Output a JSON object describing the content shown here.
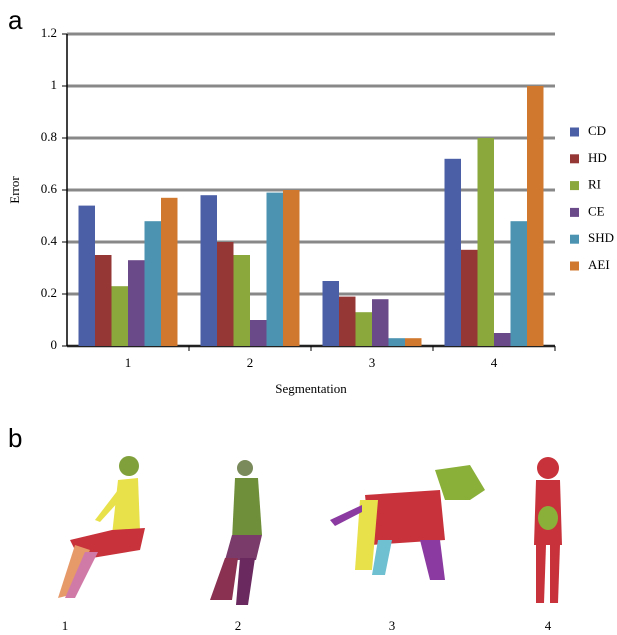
{
  "chart_data": {
    "type": "bar",
    "panel_label": "a",
    "x_label": "Segmentation",
    "y_label": "Error",
    "categories": [
      "1",
      "2",
      "3",
      "4"
    ],
    "series": [
      {
        "name": "CD",
        "color": "#4a5fa5",
        "values": [
          0.54,
          0.58,
          0.25,
          0.72
        ]
      },
      {
        "name": "HD",
        "color": "#953735",
        "values": [
          0.35,
          0.4,
          0.19,
          0.37
        ]
      },
      {
        "name": "RI",
        "color": "#8aa83c",
        "values": [
          0.23,
          0.35,
          0.13,
          0.8
        ]
      },
      {
        "name": "CE",
        "color": "#6b4a8a",
        "values": [
          0.33,
          0.1,
          0.18,
          0.05
        ]
      },
      {
        "name": "SHD",
        "color": "#4b93b0",
        "values": [
          0.48,
          0.59,
          0.03,
          0.48
        ]
      },
      {
        "name": "AEI",
        "color": "#d0782e",
        "values": [
          0.57,
          0.6,
          0.03,
          1.0
        ]
      }
    ],
    "ylim": [
      0,
      1.2
    ],
    "yticks": [
      0,
      0.2,
      0.4,
      0.6,
      0.8,
      1,
      1.2
    ],
    "grid": true,
    "legend": "right"
  },
  "figure_b": {
    "panel_label": "b",
    "captions": [
      "1",
      "2",
      "3",
      "4"
    ]
  }
}
